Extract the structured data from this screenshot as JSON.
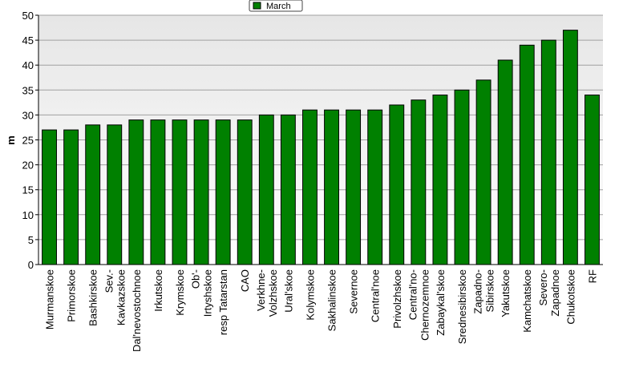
{
  "chart_data": {
    "type": "bar",
    "legend": "March",
    "y_label": "m",
    "color": "#008000",
    "categories": [
      [
        "Murmanskoe"
      ],
      [
        "Primorskoe"
      ],
      [
        "Bashkirskoe"
      ],
      [
        "Sev.-",
        "Kavkazskoe"
      ],
      [
        "Dal'nevostochnoe"
      ],
      [
        "Irkutskoe"
      ],
      [
        "Krymskoe"
      ],
      [
        "Ob'-",
        "Irtyshskoe"
      ],
      [
        "resp Tatarstan"
      ],
      [
        "CAO"
      ],
      [
        "Verkhne-",
        "Volzhskoe"
      ],
      [
        "Ural'skoe"
      ],
      [
        "Kolymskoe"
      ],
      [
        "Sakhalinskoe"
      ],
      [
        "Severnoe"
      ],
      [
        "Central'noe"
      ],
      [
        "Privolzhskoe"
      ],
      [
        "Central'no-",
        "Chernozemnoe"
      ],
      [
        "Zabaykal'skoe"
      ],
      [
        "Srednesibirskoe"
      ],
      [
        "Zapadno-",
        "Sibirskoe"
      ],
      [
        "Yakutskoe"
      ],
      [
        "Kamchatskoe"
      ],
      [
        "Severo-",
        "Zapadnoe"
      ],
      [
        "Chukotskoe"
      ],
      [
        "RF"
      ]
    ],
    "values": [
      27,
      27,
      28,
      28,
      29,
      29,
      29,
      29,
      29,
      29,
      30,
      30,
      31,
      31,
      31,
      31,
      32,
      33,
      34,
      35,
      37,
      41,
      44,
      45,
      47,
      34
    ],
    "ylim": [
      0,
      50
    ],
    "yticks": [
      0,
      5,
      10,
      15,
      20,
      25,
      30,
      35,
      40,
      45,
      50
    ],
    "grid": true
  }
}
